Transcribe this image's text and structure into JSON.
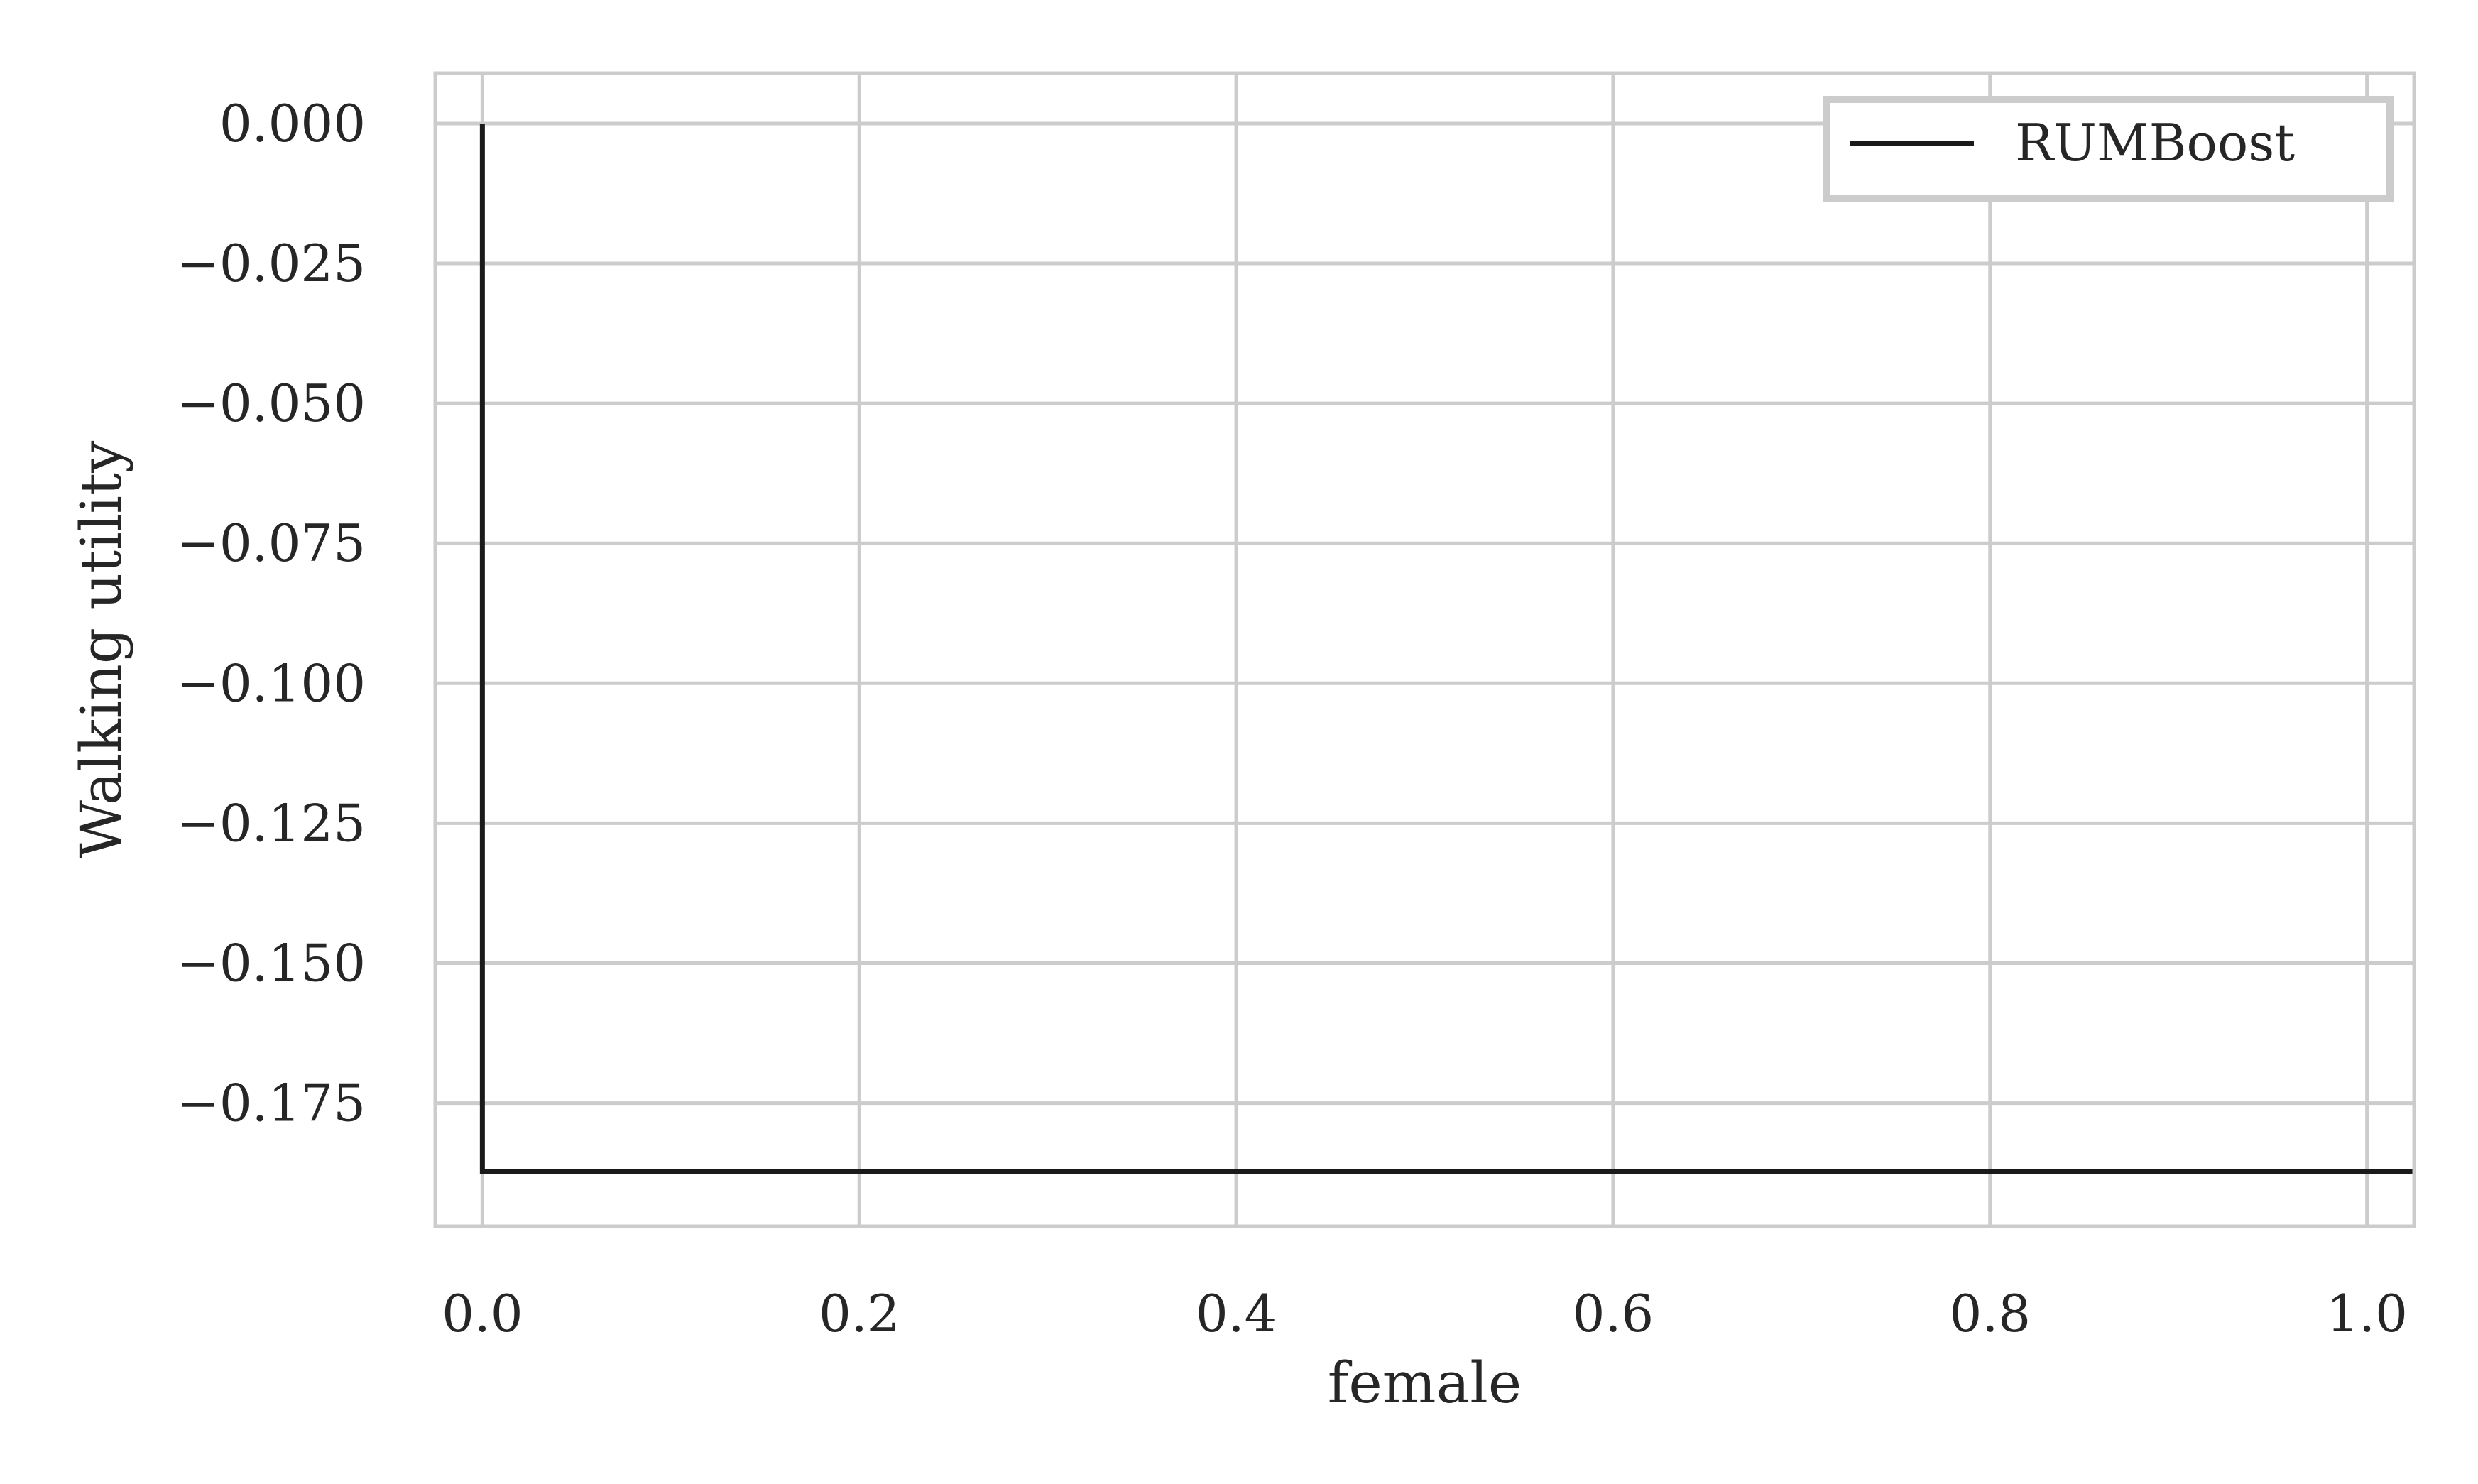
{
  "chart_data": {
    "type": "line",
    "title": "",
    "xlabel": "female",
    "ylabel": "Walking utility",
    "xlim": [
      -0.025,
      1.025
    ],
    "ylim": [
      -0.197,
      0.009
    ],
    "xticks": [
      0.0,
      0.2,
      0.4,
      0.6,
      0.8,
      1.0
    ],
    "xtick_labels": [
      "0.0",
      "0.2",
      "0.4",
      "0.6",
      "0.8",
      "1.0"
    ],
    "yticks": [
      0.0,
      -0.025,
      -0.05,
      -0.075,
      -0.1,
      -0.125,
      -0.15,
      -0.175
    ],
    "ytick_labels": [
      "0.000",
      "−0.025",
      "−0.050",
      "−0.075",
      "−0.100",
      "−0.125",
      "−0.150",
      "−0.175"
    ],
    "grid": true,
    "legend_position": "top-right",
    "series": [
      {
        "name": "RUMBoost",
        "color": "#1a1a1a",
        "x": [
          0.0,
          0.0,
          1.025
        ],
        "y": [
          0.0,
          -0.1873,
          -0.1873
        ]
      }
    ]
  }
}
